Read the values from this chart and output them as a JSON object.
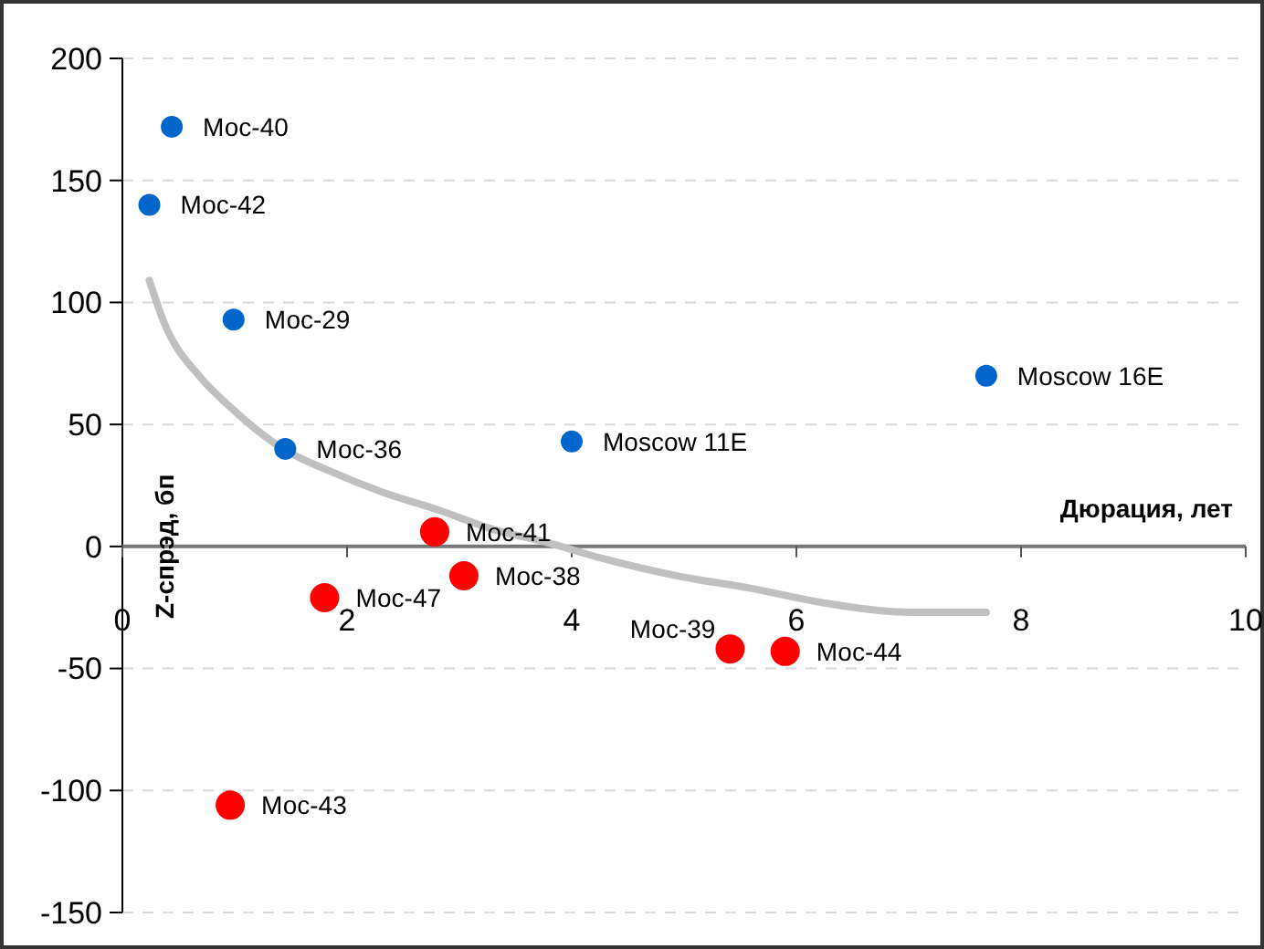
{
  "chart_data": {
    "type": "scatter",
    "xlabel": "Дюрация, лет",
    "ylabel": "Z-спрэд, бп",
    "xlim": [
      0,
      10
    ],
    "xticks": [
      0,
      2,
      4,
      6,
      8,
      10
    ],
    "ylim": [
      -150,
      200
    ],
    "yticks": [
      -150,
      -100,
      -50,
      0,
      50,
      100,
      150,
      200
    ],
    "grid": "y",
    "series": [
      {
        "type": "line",
        "marker": "none",
        "color": "#c0c0c0",
        "x": [
          0.24,
          0.36,
          0.7,
          0.94,
          1.43,
          1.84,
          2.33,
          2.81,
          3.3,
          3.79,
          4.28,
          4.93,
          5.58,
          6.23,
          7.04,
          7.69
        ],
        "values": [
          109,
          93,
          69,
          58,
          40,
          31,
          22,
          15,
          7,
          1.5,
          -5,
          -12,
          -17,
          -23,
          -27,
          -27
        ]
      },
      {
        "marker": "circle",
        "color": "#0066cc",
        "x": [
          0.44,
          0.24,
          0.99,
          1.45,
          4.0,
          7.69
        ],
        "values": [
          172,
          140,
          93,
          40,
          43,
          70
        ]
      },
      {
        "marker": "circle",
        "color": "#ff0000",
        "x": [
          2.78,
          3.04,
          1.8,
          5.41,
          5.9,
          0.96
        ],
        "values": [
          6,
          -12,
          -21,
          -42,
          -43,
          -106
        ]
      }
    ],
    "annotations": [
      {
        "text": "Мос-40",
        "x": 0.44,
        "y": 172
      },
      {
        "text": "Мос-42",
        "x": 0.24,
        "y": 140
      },
      {
        "text": "Мос-29",
        "x": 0.99,
        "y": 93
      },
      {
        "text": "Мос-36",
        "x": 1.45,
        "y": 40
      },
      {
        "text": "Moscow 11E",
        "x": 4.0,
        "y": 43
      },
      {
        "text": "Moscow 16E",
        "x": 7.69,
        "y": 70
      },
      {
        "text": "Мос-41",
        "x": 2.78,
        "y": 6
      },
      {
        "text": "Мос-38",
        "x": 3.04,
        "y": -12
      },
      {
        "text": "Мос-47",
        "x": 1.8,
        "y": -21
      },
      {
        "text": "Мос-39",
        "x": 5.41,
        "y": -42
      },
      {
        "text": "Мос-44",
        "x": 5.9,
        "y": -43
      },
      {
        "text": "Мос-43",
        "x": 0.96,
        "y": -106
      }
    ]
  }
}
